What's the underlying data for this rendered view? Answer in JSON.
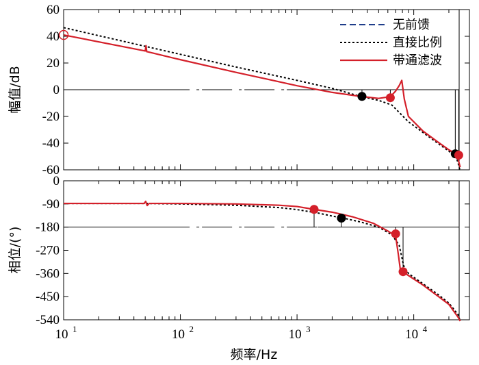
{
  "chart_data": [
    {
      "type": "line",
      "panel": "magnitude",
      "xscale": "log",
      "xlim": [
        10,
        30000
      ],
      "ylim": [
        -60,
        60
      ],
      "ylabel": "幅值/dB",
      "yticks": [
        "60",
        "40",
        "20",
        "0",
        "-20",
        "-40",
        "-60"
      ],
      "yvals": [
        60,
        40,
        20,
        0,
        -20,
        -40,
        -60
      ],
      "legend_position": "top-right",
      "series": [
        {
          "name": "无前馈",
          "color": "#1f3d8a",
          "style": "dashed",
          "x": [],
          "y": []
        },
        {
          "name": "直接比例",
          "color": "#000000",
          "style": "dotted",
          "x": [
            10,
            50,
            100,
            300,
            1000,
            2000,
            3500,
            5000,
            6500,
            7500,
            9000,
            12000,
            16000,
            20000,
            23000,
            24000,
            25000
          ],
          "y": [
            46.5,
            32.5,
            26.5,
            17,
            7,
            1,
            -5,
            -8,
            -11.5,
            -17,
            -24,
            -32,
            -40,
            -46,
            -50,
            -55,
            -62
          ]
        },
        {
          "name": "带通滤波",
          "color": "#d4202a",
          "style": "solid",
          "x": [
            10,
            50,
            50.8,
            51.5,
            53,
            100,
            300,
            1000,
            2000,
            3500,
            5000,
            6000,
            6500,
            7000,
            7500,
            7900,
            8300,
            9000,
            12000,
            16000,
            20000,
            23000,
            24000,
            25000
          ],
          "y": [
            41,
            29,
            33,
            28.5,
            28.3,
            22.5,
            13,
            3,
            -2,
            -5,
            -6.5,
            -5.5,
            -4,
            -1,
            3,
            7,
            -7,
            -20,
            -31,
            -39,
            -45,
            -48,
            -52,
            -58
          ]
        }
      ],
      "markers": [
        {
          "x": 10,
          "y": 41,
          "color": "#d4202a",
          "fill": "open"
        },
        {
          "x": 3600,
          "y": -5,
          "color": "#000000",
          "fill": "solid"
        },
        {
          "x": 6300,
          "y": -6,
          "color": "#d4202a",
          "fill": "solid"
        },
        {
          "x": 22700,
          "y": -48,
          "color": "#000000",
          "fill": "solid"
        },
        {
          "x": 24300,
          "y": -49,
          "color": "#d4202a",
          "fill": "solid"
        }
      ],
      "refline": {
        "y": 0,
        "x_start": 10,
        "x_end": 24500
      }
    },
    {
      "type": "line",
      "panel": "phase",
      "xscale": "log",
      "xlim": [
        10,
        30000
      ],
      "ylim": [
        -540,
        0
      ],
      "ylabel": "相位/(°)",
      "xlabel": "频率/Hz",
      "yticks": [
        "0",
        "-90",
        "-180",
        "-270",
        "-360",
        "-450",
        "-540"
      ],
      "yvals": [
        0,
        -90,
        -180,
        -270,
        -360,
        -450,
        -540
      ],
      "xticks": [
        "10",
        "10",
        "10",
        "10"
      ],
      "xtick_exps": [
        "1",
        "2",
        "3",
        "4"
      ],
      "xtick_vals": [
        10,
        100,
        1000,
        10000
      ],
      "series": [
        {
          "name": "直接比例",
          "color": "#000000",
          "style": "dotted",
          "x": [
            10,
            50,
            100,
            300,
            700,
            1000,
            1500,
            2000,
            2500,
            3500,
            5000,
            6500,
            7500,
            8200,
            9000,
            12000,
            16000,
            20000,
            24000,
            25000
          ],
          "y": [
            -88,
            -88,
            -90,
            -95,
            -104,
            -112,
            -125,
            -137,
            -145,
            -160,
            -180,
            -210,
            -250,
            -330,
            -360,
            -400,
            -440,
            -475,
            -520,
            -545
          ]
        },
        {
          "name": "带通滤波",
          "color": "#d4202a",
          "style": "solid",
          "x": [
            10,
            49,
            50.5,
            52,
            54,
            100,
            300,
            700,
            1000,
            1400,
            2000,
            3000,
            4500,
            6000,
            7000,
            7400,
            7700,
            8200,
            9000,
            12000,
            16000,
            20000,
            24000,
            25000
          ],
          "y": [
            -88,
            -88,
            -80,
            -96,
            -88,
            -88,
            -90,
            -95,
            -100,
            -111,
            -122,
            -140,
            -165,
            -195,
            -215,
            -290,
            -350,
            -355,
            -368,
            -405,
            -447,
            -480,
            -530,
            -545
          ]
        }
      ],
      "markers": [
        {
          "x": 1400,
          "y": -111,
          "color": "#d4202a",
          "fill": "solid"
        },
        {
          "x": 2400,
          "y": -145,
          "color": "#000000",
          "fill": "solid"
        },
        {
          "x": 7000,
          "y": -206,
          "color": "#d4202a",
          "fill": "solid"
        },
        {
          "x": 8100,
          "y": -353,
          "color": "#d4202a",
          "fill": "solid"
        }
      ],
      "refline": {
        "y": -180,
        "x_start": 10,
        "x_end": 24500
      }
    }
  ]
}
